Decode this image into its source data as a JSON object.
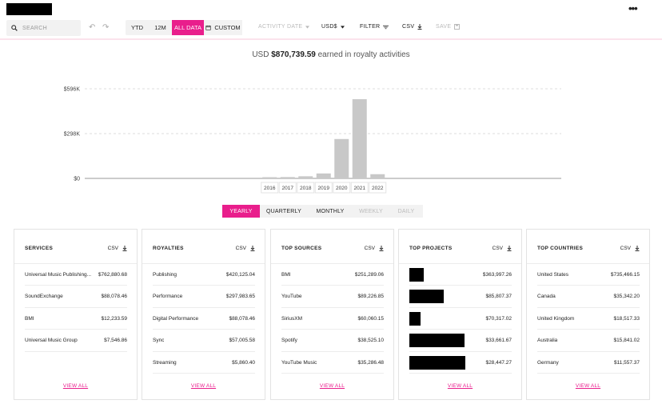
{
  "toolbar": {
    "search_placeholder": "SEARCH",
    "periods": [
      "YTD",
      "12M",
      "ALL DATA",
      "CUSTOM"
    ],
    "activity_date": "ACTIVITY DATE",
    "currency": "USD$",
    "filter": "FILTER",
    "csv": "CSV",
    "save": "SAVE"
  },
  "summary": {
    "prefix": "USD",
    "amount": "$870,739.59",
    "suffix": "earned in royalty activities"
  },
  "chart_data": {
    "type": "bar",
    "categories": [
      "2016",
      "2017",
      "2018",
      "2019",
      "2020",
      "2021",
      "2022"
    ],
    "values": [
      8000,
      9000,
      14000,
      33000,
      262000,
      527000,
      28000
    ],
    "ylim": [
      0,
      596000
    ],
    "yticks": [
      {
        "v": 0,
        "label": "$0"
      },
      {
        "v": 298000,
        "label": "$298K"
      },
      {
        "v": 596000,
        "label": "$596K"
      }
    ],
    "grid": true
  },
  "granularity": [
    "YEARLY",
    "QUARTERLY",
    "MONTHLY",
    "WEEKLY",
    "DAILY"
  ],
  "cards": [
    {
      "title": "SERVICES",
      "csv": "CSV",
      "view_all": "VIEW ALL",
      "redacted": false,
      "rows": [
        {
          "name": "Universal Music Publishing...",
          "value": "$762,880.68"
        },
        {
          "name": "SoundExchange",
          "value": "$88,078.46"
        },
        {
          "name": "BMI",
          "value": "$12,233.59"
        },
        {
          "name": "Universal Music Group",
          "value": "$7,546.86"
        }
      ]
    },
    {
      "title": "ROYALTIES",
      "csv": "CSV",
      "view_all": "VIEW ALL",
      "redacted": false,
      "rows": [
        {
          "name": "Publishing",
          "value": "$420,125.04"
        },
        {
          "name": "Performance",
          "value": "$297,983.65"
        },
        {
          "name": "Digital Performance",
          "value": "$88,078.46"
        },
        {
          "name": "Sync",
          "value": "$57,005.58"
        },
        {
          "name": "Streaming",
          "value": "$5,860.40"
        }
      ]
    },
    {
      "title": "TOP SOURCES",
      "csv": "CSV",
      "view_all": "VIEW ALL",
      "redacted": false,
      "rows": [
        {
          "name": "BMI",
          "value": "$251,289.06"
        },
        {
          "name": "YouTube",
          "value": "$89,226.85"
        },
        {
          "name": "SiriusXM",
          "value": "$60,060.15"
        },
        {
          "name": "Spotify",
          "value": "$38,525.10"
        },
        {
          "name": "YouTube Music",
          "value": "$35,286.48"
        }
      ]
    },
    {
      "title": "TOP PROJECTS",
      "csv": "CSV",
      "view_all": "VIEW ALL",
      "redacted": true,
      "rows": [
        {
          "name": "",
          "value": "$363,997.26"
        },
        {
          "name": "",
          "value": "$85,807.37"
        },
        {
          "name": "",
          "value": "$70,317.02"
        },
        {
          "name": "",
          "value": "$33,661.67"
        },
        {
          "name": "",
          "value": "$28,447.27"
        }
      ]
    },
    {
      "title": "TOP COUNTRIES",
      "csv": "CSV",
      "view_all": "VIEW ALL",
      "redacted": false,
      "rows": [
        {
          "name": "United States",
          "value": "$735,466.15"
        },
        {
          "name": "Canada",
          "value": "$35,342.20"
        },
        {
          "name": "United Kingdom",
          "value": "$18,517.33"
        },
        {
          "name": "Australia",
          "value": "$15,841.02"
        },
        {
          "name": "Germany",
          "value": "$11,557.37"
        }
      ]
    }
  ]
}
